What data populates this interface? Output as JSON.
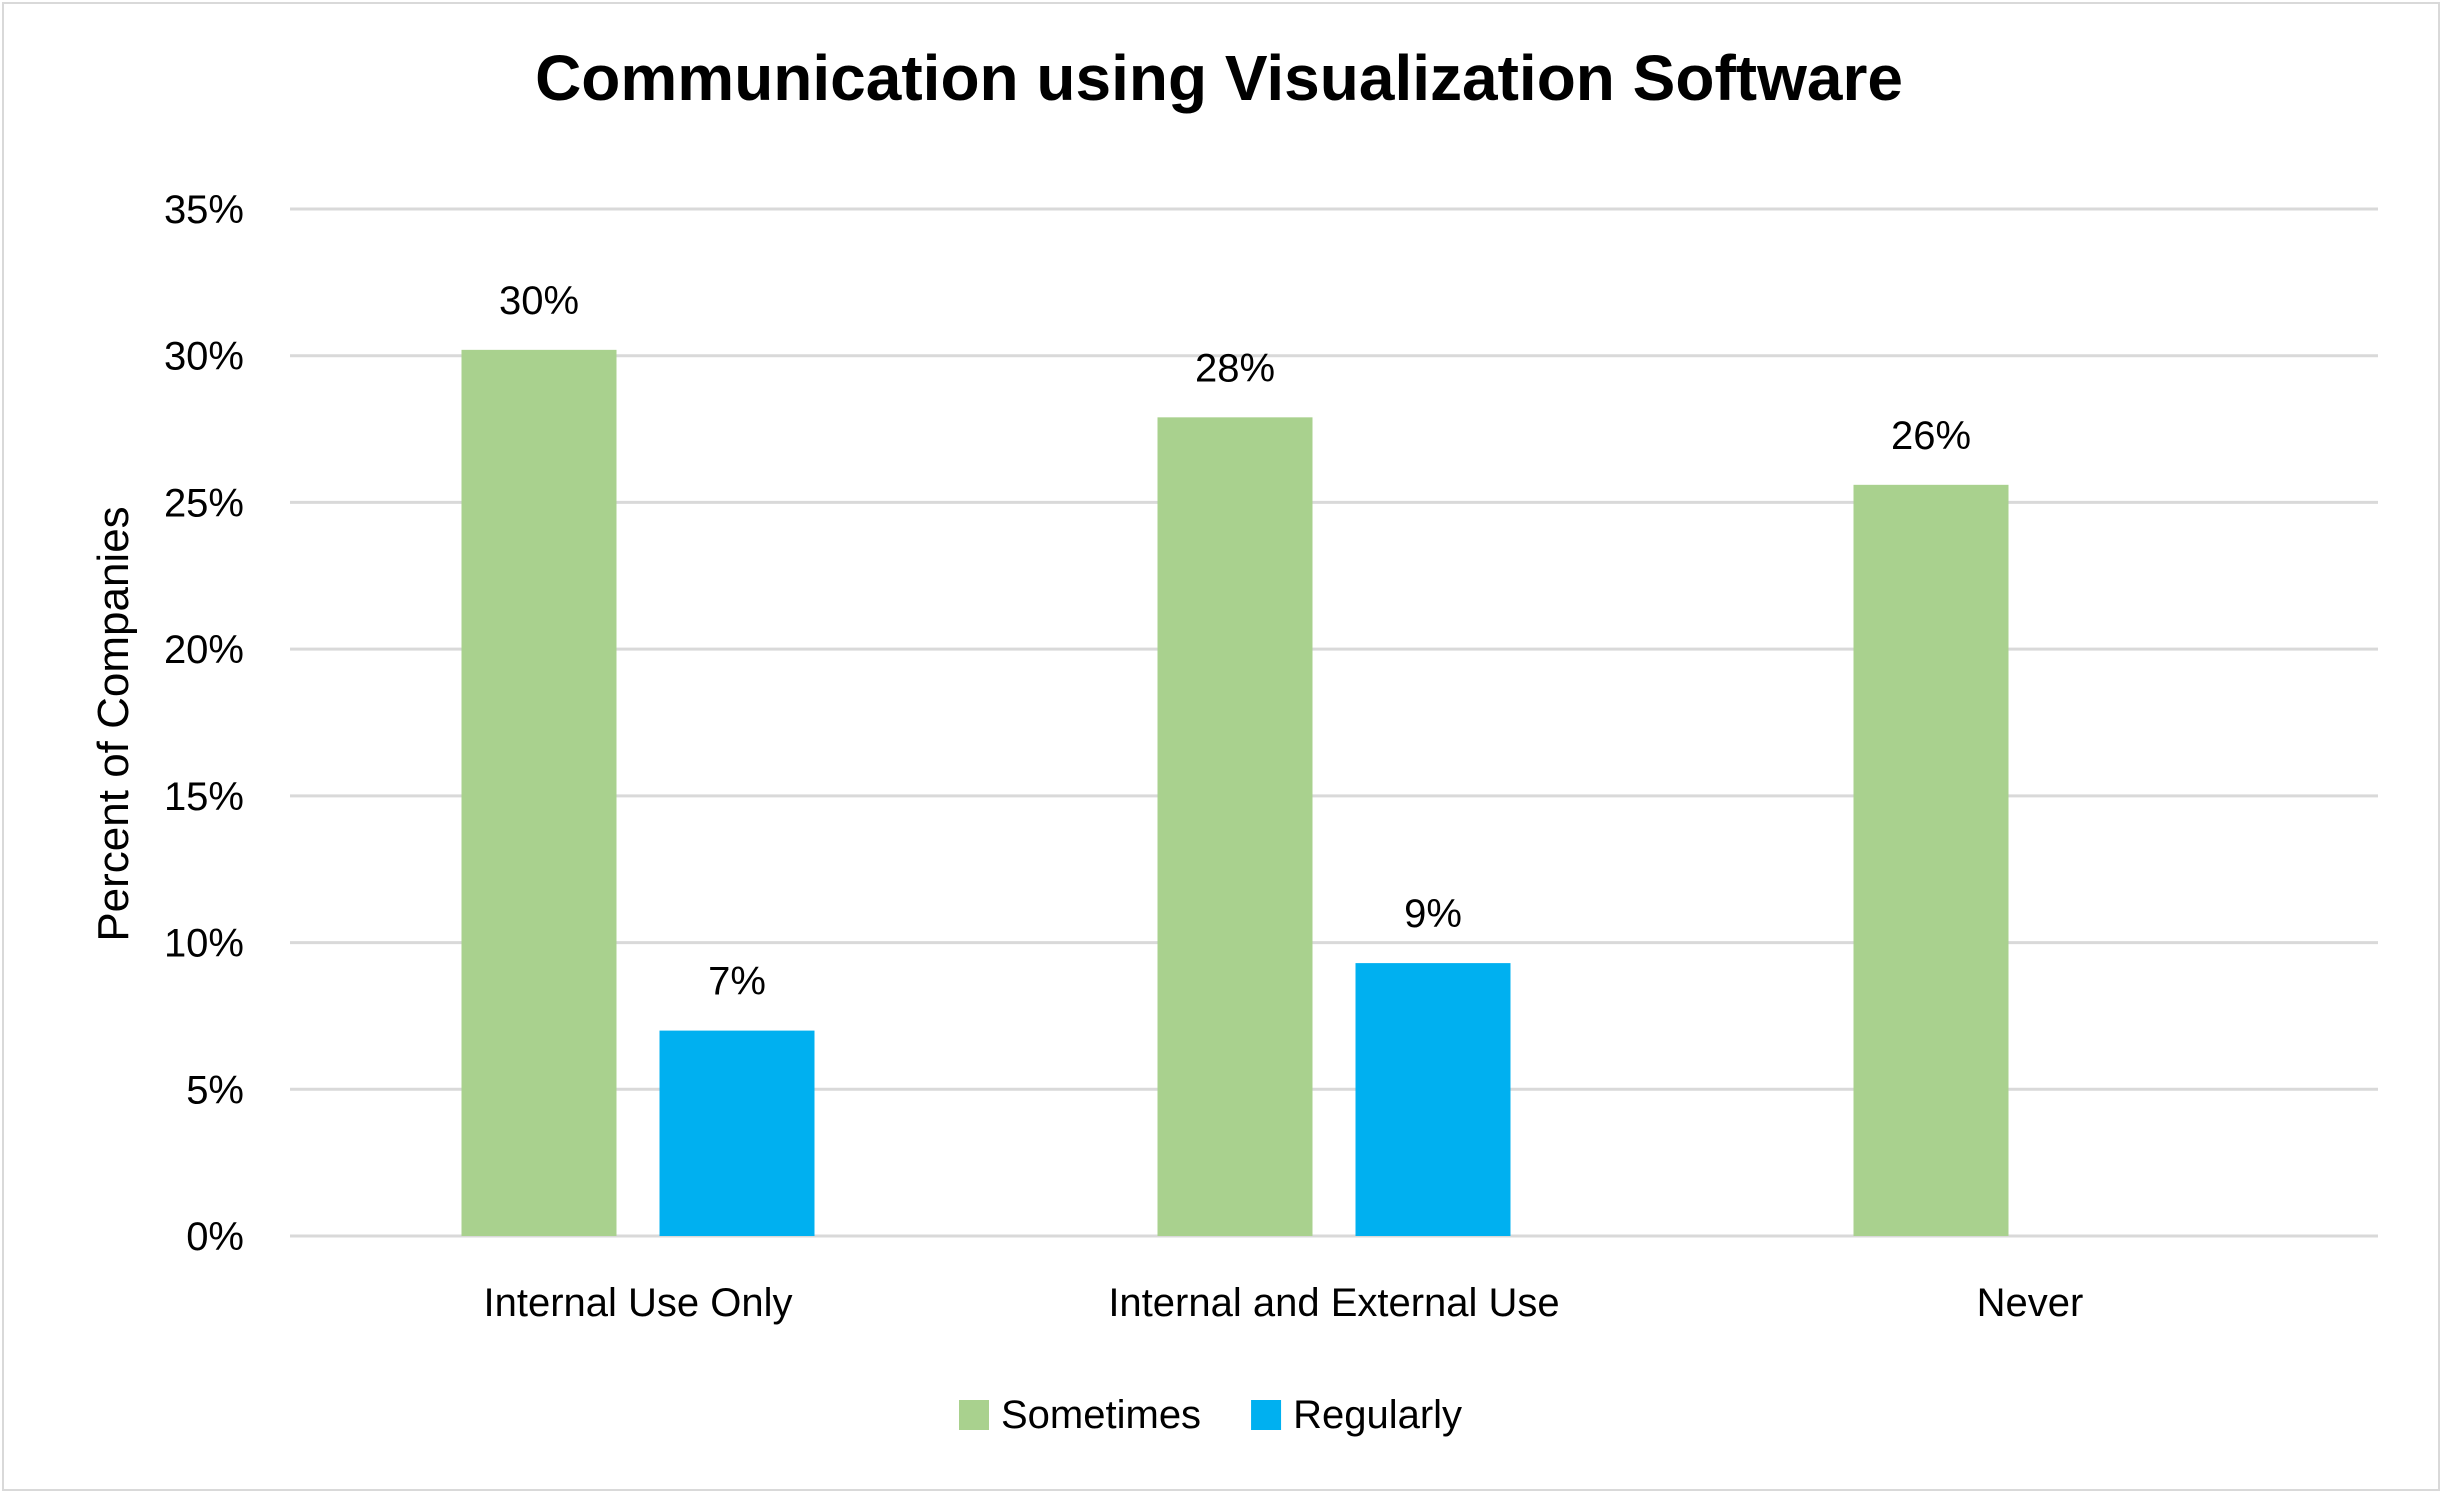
{
  "chart_data": {
    "type": "bar",
    "title": "Communication using Visualization Software",
    "xlabel": "",
    "ylabel": "Percent of Companies",
    "categories": [
      "Internal Use Only",
      "Internal and External Use",
      "Never"
    ],
    "series": [
      {
        "name": "Sometimes",
        "color": "#a9d18e",
        "values": [
          30.2,
          27.9,
          25.6
        ],
        "labels": [
          "30%",
          "28%",
          "26%"
        ]
      },
      {
        "name": "Regularly",
        "color": "#00b0f0",
        "values": [
          7.0,
          9.3,
          null
        ],
        "labels": [
          "7%",
          "9%",
          null
        ]
      }
    ],
    "ylim": [
      0,
      35
    ],
    "yticks": [
      0,
      5,
      10,
      15,
      20,
      25,
      30,
      35
    ],
    "ytick_labels": [
      "0%",
      "5%",
      "10%",
      "15%",
      "20%",
      "25%",
      "30%",
      "35%"
    ],
    "grid": true,
    "gridline_color": "#d9d9d9",
    "legend_position": "bottom-center"
  }
}
